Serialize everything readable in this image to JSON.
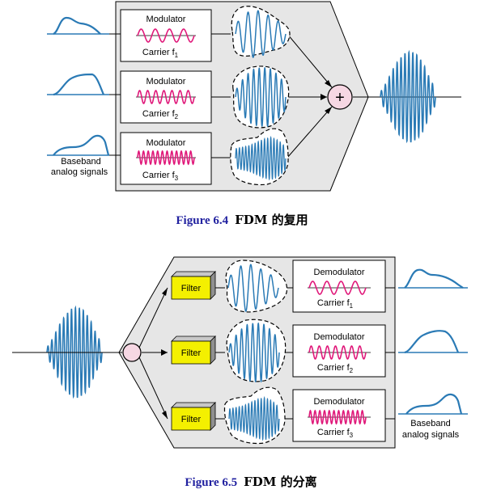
{
  "colors": {
    "signal": "#2a7ab5",
    "carrier": "#e0197a",
    "panel": "#e6e6e6",
    "filter_box": "#f4f000",
    "adder_fill": "#f6d7e3"
  },
  "fig4": {
    "modulators": [
      {
        "title": "Modulator",
        "carrier_label": "Carrier f",
        "sub": "1"
      },
      {
        "title": "Modulator",
        "carrier_label": "Carrier f",
        "sub": "2"
      },
      {
        "title": "Modulator",
        "carrier_label": "Carrier f",
        "sub": "3"
      }
    ],
    "baseband_label_1": "Baseband",
    "baseband_label_2": "analog signals",
    "adder_symbol": "+",
    "caption_fig": "Figure 6.4",
    "caption_text": "FDM 的复用"
  },
  "fig5": {
    "filter_label": "Filter",
    "demodulators": [
      {
        "title": "Demodulator",
        "carrier_label": "Carrier f",
        "sub": "1"
      },
      {
        "title": "Demodulator",
        "carrier_label": "Carrier f",
        "sub": "2"
      },
      {
        "title": "Demodulator",
        "carrier_label": "Carrier f",
        "sub": "3"
      }
    ],
    "baseband_label_1": "Baseband",
    "baseband_label_2": "analog signals",
    "caption_fig": "Figure 6.5",
    "caption_text": "FDM 的分离"
  }
}
